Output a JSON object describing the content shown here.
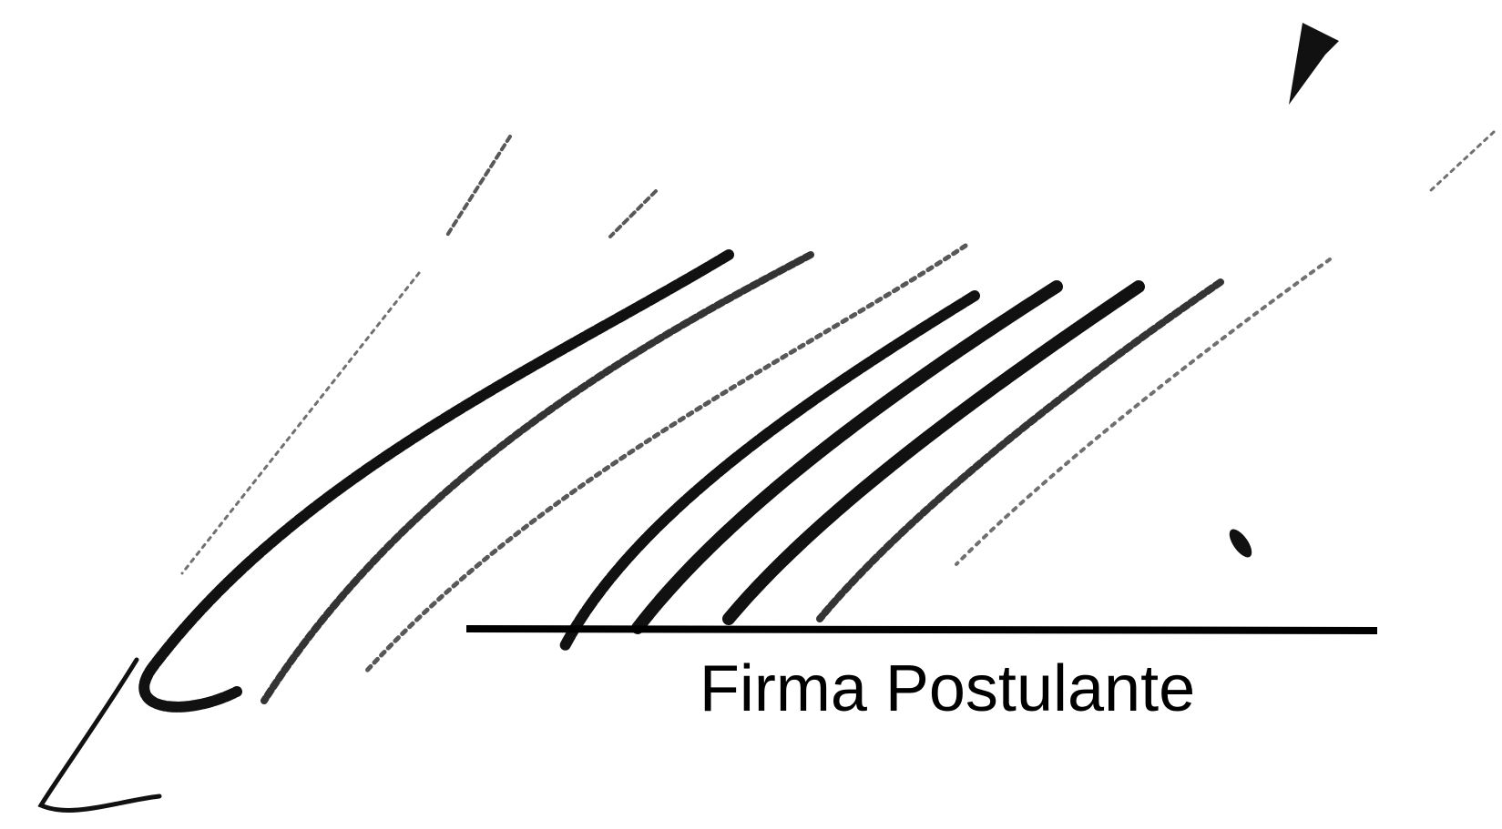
{
  "label": "Firma Postulante"
}
